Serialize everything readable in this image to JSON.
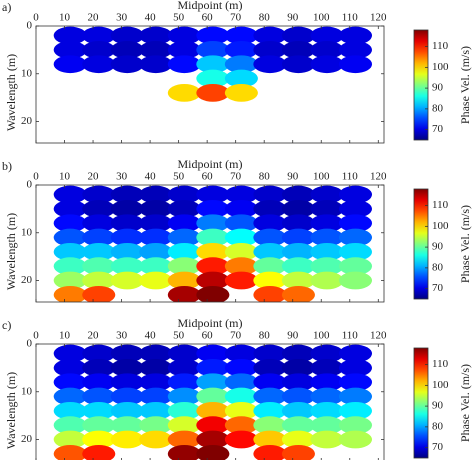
{
  "chart_data": [
    {
      "type": "heatmap",
      "panel_label": "a)",
      "xlabel": "Midpoint (m)",
      "ylabel": "Wavelength (m)",
      "colorbar_label": "Phase Vel. (m/s)",
      "colormap": "jet",
      "x": [
        12,
        22,
        32,
        42,
        52,
        62,
        72,
        82,
        92,
        102,
        112
      ],
      "y": [
        2,
        5,
        8,
        11,
        14
      ],
      "z": [
        [
          70,
          70,
          69,
          69,
          70,
          72,
          72,
          70,
          69,
          70,
          70
        ],
        [
          70,
          69,
          68,
          68,
          70,
          75,
          73,
          69,
          68,
          69,
          70
        ],
        [
          71,
          70,
          69,
          69,
          72,
          82,
          78,
          70,
          69,
          70,
          71
        ],
        [
          null,
          null,
          null,
          null,
          null,
          86,
          83,
          null,
          null,
          null,
          null
        ],
        [
          null,
          null,
          null,
          null,
          100,
          108,
          100,
          null,
          null,
          null,
          null
        ]
      ],
      "xlim": [
        0,
        122
      ],
      "xticks": [
        0,
        10,
        20,
        30,
        40,
        50,
        60,
        70,
        80,
        90,
        100,
        110,
        120
      ],
      "ylim": [
        0,
        24.5
      ],
      "yticks": [
        0,
        10,
        20
      ],
      "zlim": [
        65,
        118
      ],
      "zticks": [
        70,
        80,
        90,
        100,
        110
      ]
    },
    {
      "type": "heatmap",
      "panel_label": "b)",
      "xlabel": "Midpoint (m)",
      "ylabel": "Wavelength (m)",
      "colorbar_label": "Phase Vel. (m/s)",
      "colormap": "jet",
      "x": [
        12,
        22,
        32,
        42,
        52,
        62,
        72,
        82,
        92,
        102,
        112
      ],
      "y": [
        2,
        5,
        8,
        11,
        14,
        17,
        20,
        23
      ],
      "z": [
        [
          70,
          69,
          68,
          68,
          69,
          70,
          70,
          69,
          68,
          69,
          70
        ],
        [
          70,
          68,
          67,
          67,
          68,
          72,
          71,
          68,
          67,
          68,
          70
        ],
        [
          72,
          70,
          69,
          69,
          71,
          78,
          76,
          70,
          69,
          70,
          72
        ],
        [
          76,
          75,
          74,
          74,
          77,
          88,
          85,
          76,
          75,
          76,
          77
        ],
        [
          82,
          82,
          81,
          80,
          84,
          100,
          96,
          82,
          81,
          82,
          83
        ],
        [
          88,
          89,
          88,
          88,
          92,
          110,
          105,
          90,
          88,
          89,
          90
        ],
        [
          93,
          95,
          96,
          97,
          102,
          115,
          110,
          98,
          95,
          94,
          92
        ],
        [
          105,
          108,
          null,
          null,
          116,
          118,
          null,
          108,
          106,
          null,
          null
        ]
      ],
      "xlim": [
        0,
        122
      ],
      "xticks": [
        0,
        10,
        20,
        30,
        40,
        50,
        60,
        70,
        80,
        90,
        100,
        110,
        120
      ],
      "ylim": [
        0,
        24.5
      ],
      "yticks": [
        0,
        10,
        20
      ],
      "zlim": [
        65,
        118
      ],
      "zticks": [
        70,
        80,
        90,
        100,
        110
      ]
    },
    {
      "type": "heatmap",
      "panel_label": "c)",
      "xlabel": "Midpoint (m)",
      "ylabel": "Wavelength (m)",
      "colorbar_label": "Phase Vel. (m/s)",
      "colormap": "jet",
      "x": [
        12,
        22,
        32,
        42,
        52,
        62,
        72,
        82,
        92,
        102,
        112
      ],
      "y": [
        2,
        5,
        8,
        11,
        14,
        17,
        20,
        23
      ],
      "z": [
        [
          70,
          69,
          68,
          68,
          69,
          71,
          70,
          69,
          68,
          69,
          70
        ],
        [
          70,
          68,
          67,
          67,
          69,
          73,
          72,
          68,
          67,
          68,
          70
        ],
        [
          72,
          71,
          70,
          70,
          73,
          80,
          77,
          71,
          70,
          71,
          72
        ],
        [
          77,
          76,
          75,
          75,
          79,
          90,
          86,
          77,
          76,
          77,
          78
        ],
        [
          83,
          83,
          82,
          82,
          87,
          102,
          97,
          84,
          82,
          83,
          84
        ],
        [
          89,
          90,
          90,
          91,
          96,
          112,
          106,
          92,
          90,
          90,
          91
        ],
        [
          95,
          98,
          99,
          100,
          106,
          116,
          111,
          101,
          97,
          95,
          94
        ],
        [
          107,
          110,
          null,
          null,
          117,
          118,
          null,
          110,
          108,
          null,
          null
        ]
      ],
      "xlim": [
        0,
        122
      ],
      "xticks": [
        0,
        10,
        20,
        30,
        40,
        50,
        60,
        70,
        80,
        90,
        100,
        110,
        120
      ],
      "ylim": [
        0,
        24.5
      ],
      "yticks": [
        0,
        10,
        20
      ],
      "zlim": [
        65,
        118
      ],
      "zticks": [
        70,
        80,
        90,
        100,
        110
      ]
    }
  ]
}
